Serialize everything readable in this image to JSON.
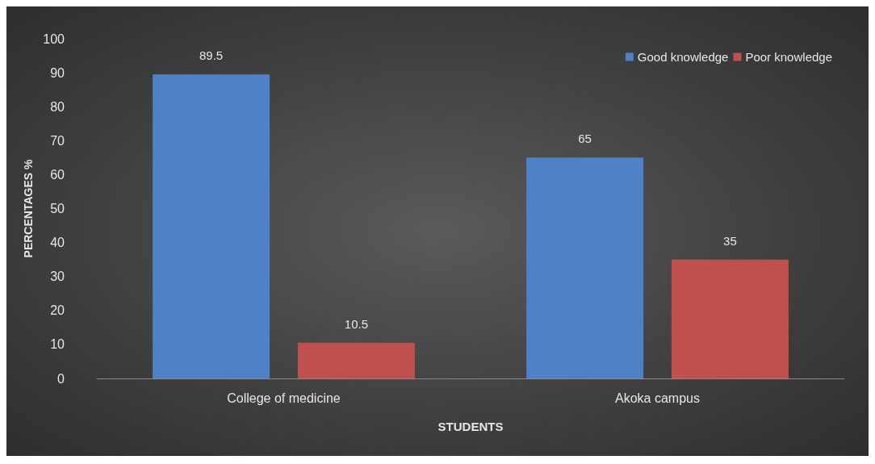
{
  "chart_data": {
    "type": "bar",
    "xlabel": "STUDENTS",
    "ylabel": "PERCENTAGES %",
    "categories": [
      "College of medicine",
      "Akoka campus"
    ],
    "series": [
      {
        "name": "Good knowledge",
        "color": "#4f81c7",
        "values": [
          89.5,
          65
        ]
      },
      {
        "name": "Poor knowledge",
        "color": "#c0504d",
        "values": [
          10.5,
          35
        ]
      }
    ],
    "ylim": [
      0,
      100
    ],
    "yticks": [
      0,
      10,
      20,
      30,
      40,
      50,
      60,
      70,
      80,
      90,
      100
    ],
    "grid": false,
    "legend": "top right",
    "data_labels": true
  }
}
